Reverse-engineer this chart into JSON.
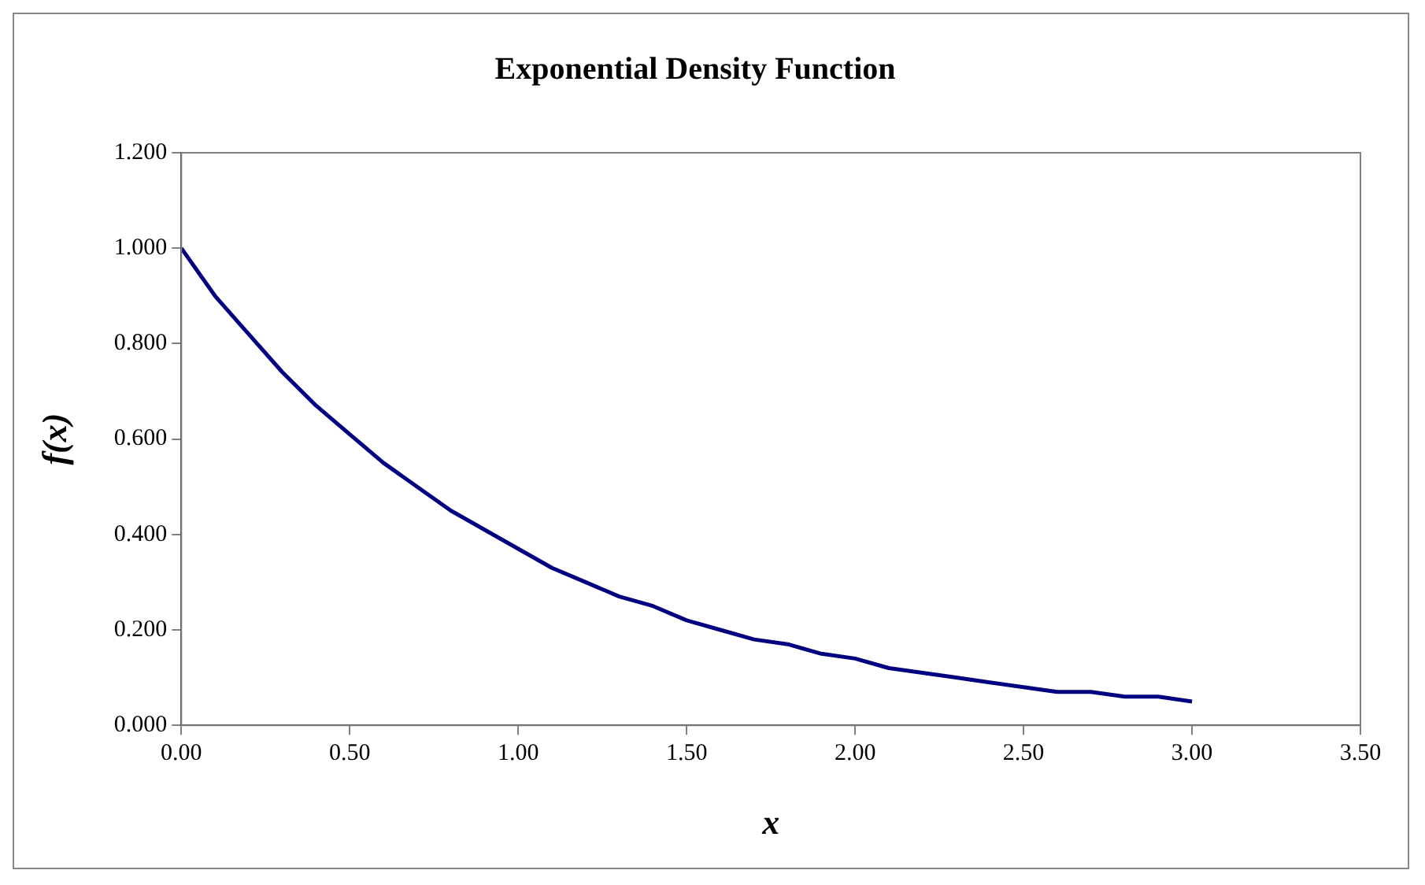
{
  "chart_data": {
    "type": "line",
    "title": "Exponential Density Function",
    "xlabel": "x",
    "ylabel": "f(x)",
    "x": [
      0,
      0.1,
      0.2,
      0.3,
      0.4,
      0.5,
      0.6,
      0.7,
      0.8,
      0.9,
      1.0,
      1.1,
      1.2,
      1.3,
      1.4,
      1.5,
      1.6,
      1.7,
      1.8,
      1.9,
      2.0,
      2.1,
      2.2,
      2.3,
      2.4,
      2.5,
      2.6,
      2.7,
      2.8,
      2.9,
      3.0
    ],
    "series": [
      {
        "color": "#000080",
        "values": [
          1.0,
          0.9,
          0.82,
          0.74,
          0.67,
          0.61,
          0.55,
          0.5,
          0.45,
          0.41,
          0.37,
          0.33,
          0.3,
          0.27,
          0.25,
          0.22,
          0.2,
          0.18,
          0.17,
          0.15,
          0.14,
          0.12,
          0.11,
          0.1,
          0.09,
          0.08,
          0.07,
          0.07,
          0.06,
          0.06,
          0.05
        ]
      }
    ],
    "xlim": [
      0,
      3.5
    ],
    "xticks": [
      {
        "value": 0,
        "label": "0.00"
      },
      {
        "value": 0.5,
        "label": "0.50"
      },
      {
        "value": 1,
        "label": "1.00"
      },
      {
        "value": 1.5,
        "label": "1.50"
      },
      {
        "value": 2,
        "label": "2.00"
      },
      {
        "value": 2.5,
        "label": "2.50"
      },
      {
        "value": 3,
        "label": "3.00"
      },
      {
        "value": 3.5,
        "label": "3.50"
      }
    ],
    "ylim": [
      0,
      1.2
    ],
    "yticks": [
      {
        "value": 0,
        "label": "0.000"
      },
      {
        "value": 0.2,
        "label": "0.200"
      },
      {
        "value": 0.4,
        "label": "0.400"
      },
      {
        "value": 0.6,
        "label": "0.600"
      },
      {
        "value": 0.8,
        "label": "0.800"
      },
      {
        "value": 1,
        "label": "1.000"
      },
      {
        "value": 1.2,
        "label": "1.200"
      }
    ],
    "legend": false,
    "marker": "none",
    "line_style": "solid"
  }
}
